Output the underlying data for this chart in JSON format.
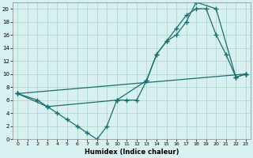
{
  "xlabel": "Humidex (Indice chaleur)",
  "bg_color": "#d8f0f0",
  "grid_color": "#aad4cc",
  "line_color": "#1a6e6e",
  "xlim": [
    -0.5,
    23.5
  ],
  "ylim": [
    0,
    21
  ],
  "xticks": [
    0,
    1,
    2,
    3,
    4,
    5,
    6,
    7,
    8,
    9,
    10,
    11,
    12,
    13,
    14,
    15,
    16,
    17,
    18,
    19,
    20,
    21,
    22,
    23
  ],
  "yticks": [
    0,
    2,
    4,
    6,
    8,
    10,
    12,
    14,
    16,
    18,
    20
  ],
  "series": [
    {
      "x": [
        0,
        2,
        3,
        4,
        5,
        6,
        7,
        8,
        9,
        10,
        11,
        12,
        13,
        14,
        15,
        16,
        17,
        18,
        19,
        20,
        21,
        22,
        23
      ],
      "y": [
        7,
        6,
        5,
        4,
        3,
        2,
        1,
        0,
        2,
        6,
        6,
        6,
        9,
        13,
        15,
        17,
        19,
        20,
        20,
        16,
        13,
        9.5,
        10
      ]
    },
    {
      "x": [
        0,
        23
      ],
      "y": [
        7,
        10
      ]
    },
    {
      "x": [
        0,
        3,
        10,
        13,
        14,
        15,
        16,
        17,
        18,
        20,
        22,
        23
      ],
      "y": [
        7,
        5,
        6,
        9,
        13,
        15,
        16,
        18,
        21,
        20,
        9.5,
        10
      ]
    }
  ]
}
